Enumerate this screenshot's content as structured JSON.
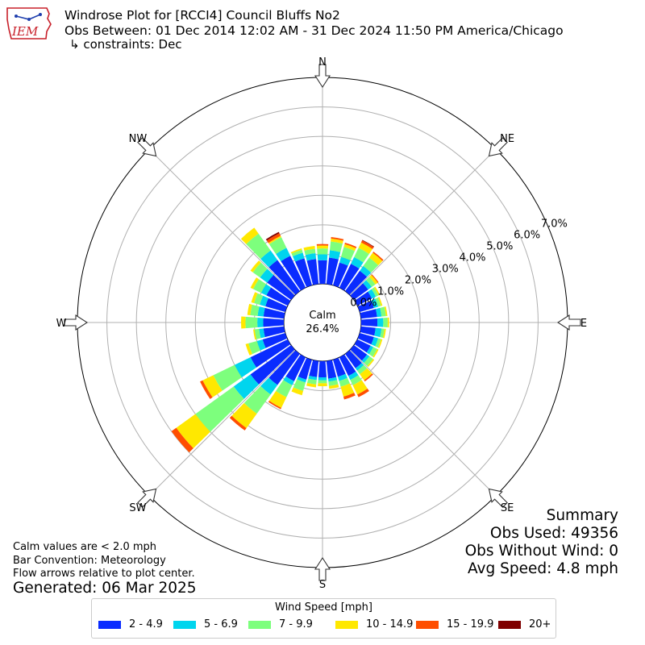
{
  "header": {
    "title": "Windrose Plot for [RCCI4] Council Bluffs No2",
    "obs_between": "Obs Between: 01 Dec 2014 12:02 AM - 31 Dec 2024 11:50 PM America/Chicago",
    "constraints": "↳ constraints: Dec",
    "logo_text": "IEM"
  },
  "summary": {
    "heading": "Summary",
    "obs_used": "Obs Used: 49356",
    "obs_without_wind": "Obs Without Wind: 0",
    "avg_speed": "Avg Speed: 4.8 mph"
  },
  "notes": {
    "calm_note": "Calm values are < 2.0 mph",
    "bar_convention": "Bar Convention: Meteorology",
    "flow_arrows": "Flow arrows relative to plot center.",
    "generated": "Generated: 06 Mar 2025"
  },
  "legend": {
    "title": "Wind Speed [mph]",
    "entries": [
      "2 - 4.9",
      "5 - 6.9",
      "7 - 9.9",
      "10 - 14.9",
      "15 - 19.9",
      "20+"
    ]
  },
  "colors": {
    "bins": [
      "#0a2cff",
      "#00d5ee",
      "#7dff7d",
      "#ffe800",
      "#ff4e00",
      "#7f0000"
    ],
    "grid": "#b0b0b0",
    "arrow_fill": "#ffffff",
    "logo_red": "#c8202a",
    "logo_blue": "#1f3fae"
  },
  "chart_data": {
    "type": "windrose",
    "calm_label": "Calm",
    "calm_value": "26.4%",
    "calm_percent": 26.4,
    "r_ticks": [
      "0.0%",
      "1.0%",
      "2.0%",
      "3.0%",
      "4.0%",
      "5.0%",
      "6.0%",
      "7.0%"
    ],
    "r_max": 7.0,
    "compass_labels": [
      "N",
      "NE",
      "E",
      "SE",
      "S",
      "SW",
      "W",
      "NW"
    ],
    "direction_step_deg": 10,
    "direction_degrees": [
      0,
      10,
      20,
      30,
      40,
      50,
      60,
      70,
      80,
      90,
      100,
      110,
      120,
      130,
      140,
      150,
      160,
      170,
      180,
      190,
      200,
      210,
      220,
      230,
      240,
      250,
      260,
      270,
      280,
      290,
      300,
      310,
      320,
      330,
      340,
      350
    ],
    "speed_bins": [
      "2 - 4.9",
      "5 - 6.9",
      "7 - 9.9",
      "10 - 14.9",
      "15 - 19.9",
      "20+"
    ],
    "cumulative_percent": [
      [
        0.8,
        1.0,
        1.2,
        1.3,
        1.35,
        1.35
      ],
      [
        0.9,
        1.15,
        1.45,
        1.55,
        1.6,
        1.6
      ],
      [
        0.8,
        1.0,
        1.35,
        1.45,
        1.5,
        1.5
      ],
      [
        0.9,
        1.15,
        1.5,
        1.7,
        1.78,
        1.8
      ],
      [
        0.85,
        1.05,
        1.4,
        1.6,
        1.65,
        1.65
      ],
      [
        0.6,
        0.75,
        0.9,
        1.0,
        1.03,
        1.03
      ],
      [
        0.55,
        0.7,
        0.8,
        0.85,
        0.85,
        0.85
      ],
      [
        0.5,
        0.65,
        0.75,
        0.8,
        0.8,
        0.8
      ],
      [
        0.55,
        0.7,
        0.85,
        0.9,
        0.9,
        0.9
      ],
      [
        0.55,
        0.75,
        0.9,
        0.95,
        0.95,
        0.95
      ],
      [
        0.5,
        0.7,
        0.8,
        0.85,
        0.85,
        0.85
      ],
      [
        0.5,
        0.65,
        0.75,
        0.8,
        0.8,
        0.8
      ],
      [
        0.5,
        0.6,
        0.75,
        0.8,
        0.8,
        0.8
      ],
      [
        0.55,
        0.65,
        0.8,
        0.85,
        0.85,
        0.85
      ],
      [
        0.6,
        0.7,
        0.85,
        1.1,
        1.15,
        1.15
      ],
      [
        0.7,
        0.85,
        1.05,
        1.4,
        1.5,
        1.5
      ],
      [
        0.6,
        0.75,
        0.95,
        1.3,
        1.4,
        1.4
      ],
      [
        0.6,
        0.7,
        0.85,
        0.95,
        0.95,
        0.95
      ],
      [
        0.55,
        0.65,
        0.75,
        0.85,
        0.85,
        0.85
      ],
      [
        0.55,
        0.65,
        0.8,
        0.9,
        0.9,
        0.9
      ],
      [
        0.7,
        0.8,
        1.1,
        1.25,
        1.25,
        1.25
      ],
      [
        0.9,
        1.05,
        1.5,
        1.9,
        1.95,
        1.95
      ],
      [
        1.3,
        1.7,
        2.5,
        3.1,
        3.2,
        3.2
      ],
      [
        1.7,
        2.4,
        4.0,
        4.8,
        5.0,
        5.0
      ],
      [
        1.4,
        2.0,
        2.8,
        3.2,
        3.3,
        3.3
      ],
      [
        0.8,
        1.0,
        1.3,
        1.4,
        1.4,
        1.4
      ],
      [
        0.7,
        0.85,
        1.0,
        1.05,
        1.05,
        1.05
      ],
      [
        0.7,
        0.9,
        1.3,
        1.45,
        1.45,
        1.45
      ],
      [
        0.7,
        0.9,
        1.15,
        1.25,
        1.25,
        1.25
      ],
      [
        0.7,
        0.9,
        1.1,
        1.2,
        1.2,
        1.2
      ],
      [
        0.8,
        1.0,
        1.3,
        1.4,
        1.4,
        1.4
      ],
      [
        1.0,
        1.3,
        1.6,
        1.7,
        1.7,
        1.7
      ],
      [
        1.3,
        1.7,
        2.4,
        2.65,
        2.65,
        2.65
      ],
      [
        1.2,
        1.5,
        1.9,
        1.95,
        2.05,
        2.1
      ],
      [
        0.95,
        1.15,
        1.25,
        1.3,
        1.3,
        1.3
      ],
      [
        0.85,
        1.05,
        1.2,
        1.3,
        1.3,
        1.3
      ]
    ]
  }
}
